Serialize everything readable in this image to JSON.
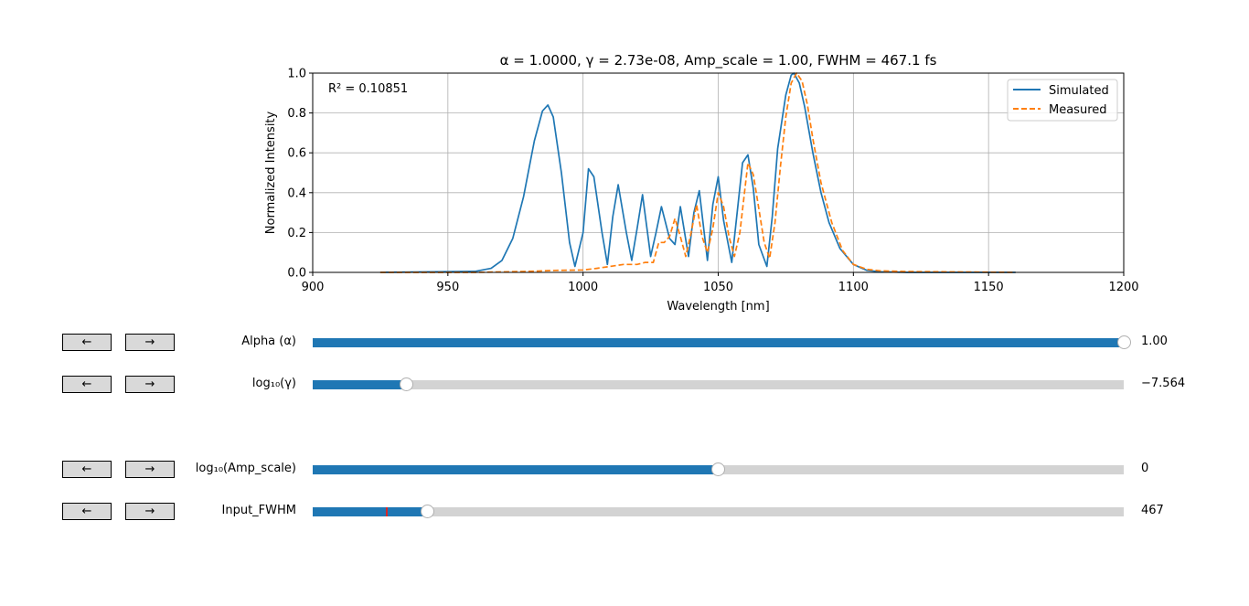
{
  "chart_data": {
    "type": "line",
    "title": "α = 1.0000, γ = 2.73e-08, Amp_scale = 1.00, FWHM = 467.1 fs",
    "xlabel": "Wavelength [nm]",
    "ylabel": "Normalized Intensity",
    "xlim": [
      900,
      1200
    ],
    "ylim": [
      0,
      1.0
    ],
    "xticks": [
      "900",
      "950",
      "1000",
      "1050",
      "1100",
      "1150",
      "1200"
    ],
    "yticks": [
      "0.0",
      "0.2",
      "0.4",
      "0.6",
      "0.8",
      "1.0"
    ],
    "grid": true,
    "legend_position": "top-right",
    "annotation": "R² = 0.10851",
    "series": [
      {
        "name": "Simulated",
        "color": "#1f77b4",
        "style": "solid",
        "x": [
          925,
          960,
          966,
          970,
          974,
          978,
          982,
          985,
          987,
          989,
          992,
          995,
          997,
          1000,
          1002,
          1004,
          1007,
          1009,
          1011,
          1013,
          1016,
          1018,
          1020,
          1022,
          1025,
          1027,
          1029,
          1032,
          1034,
          1036,
          1039,
          1041,
          1043,
          1046,
          1048,
          1050,
          1052,
          1055,
          1057,
          1059,
          1061,
          1063,
          1065,
          1068,
          1070,
          1072,
          1075,
          1077,
          1078,
          1080,
          1082,
          1085,
          1088,
          1091,
          1095,
          1100,
          1105,
          1110,
          1120,
          1160
        ],
        "y": [
          0.0,
          0.005,
          0.02,
          0.06,
          0.17,
          0.38,
          0.66,
          0.81,
          0.84,
          0.78,
          0.5,
          0.15,
          0.03,
          0.2,
          0.52,
          0.48,
          0.2,
          0.04,
          0.28,
          0.44,
          0.2,
          0.06,
          0.22,
          0.39,
          0.08,
          0.2,
          0.33,
          0.17,
          0.14,
          0.33,
          0.08,
          0.3,
          0.41,
          0.06,
          0.34,
          0.48,
          0.26,
          0.05,
          0.3,
          0.55,
          0.59,
          0.42,
          0.14,
          0.03,
          0.28,
          0.62,
          0.89,
          0.99,
          1.0,
          0.95,
          0.83,
          0.6,
          0.4,
          0.25,
          0.12,
          0.04,
          0.01,
          0.003,
          0.0,
          0.0
        ]
      },
      {
        "name": "Measured",
        "color": "#ff7f0e",
        "style": "dashed",
        "x": [
          925,
          960,
          980,
          990,
          1000,
          1005,
          1010,
          1015,
          1020,
          1023,
          1026,
          1028,
          1030,
          1032,
          1034,
          1036,
          1038,
          1040,
          1042,
          1044,
          1046,
          1048,
          1050,
          1052,
          1054,
          1056,
          1058,
          1061,
          1063,
          1065,
          1067,
          1069,
          1071,
          1073,
          1075,
          1077,
          1079,
          1081,
          1083,
          1085,
          1088,
          1092,
          1096,
          1100,
          1105,
          1110,
          1120,
          1160
        ],
        "y": [
          0.0,
          0.0,
          0.005,
          0.01,
          0.012,
          0.02,
          0.03,
          0.04,
          0.04,
          0.05,
          0.05,
          0.15,
          0.15,
          0.18,
          0.27,
          0.18,
          0.08,
          0.2,
          0.34,
          0.18,
          0.1,
          0.22,
          0.4,
          0.33,
          0.18,
          0.08,
          0.2,
          0.55,
          0.49,
          0.32,
          0.15,
          0.07,
          0.25,
          0.53,
          0.78,
          0.95,
          1.0,
          0.96,
          0.84,
          0.67,
          0.45,
          0.25,
          0.11,
          0.04,
          0.015,
          0.008,
          0.004,
          0.0
        ]
      }
    ]
  },
  "sliders": [
    {
      "label": "Alpha (α)",
      "value_text": "1.00",
      "fraction": 1.0
    },
    {
      "label": "log₁₀(γ)",
      "value_text": "−7.564",
      "fraction": 0.116
    },
    {
      "label": "log₁₀(Amp_scale)",
      "value_text": "0",
      "fraction": 0.5
    },
    {
      "label": "Input_FWHM",
      "value_text": "467",
      "fraction": 0.141,
      "marker_fraction": 0.09,
      "marker_color": "#d62728"
    }
  ],
  "buttons": {
    "prev": "←",
    "next": "→"
  },
  "colors": {
    "slider_fill": "#1f77b4",
    "slider_track": "#d3d3d3",
    "button_bg": "#d9d9d9"
  }
}
